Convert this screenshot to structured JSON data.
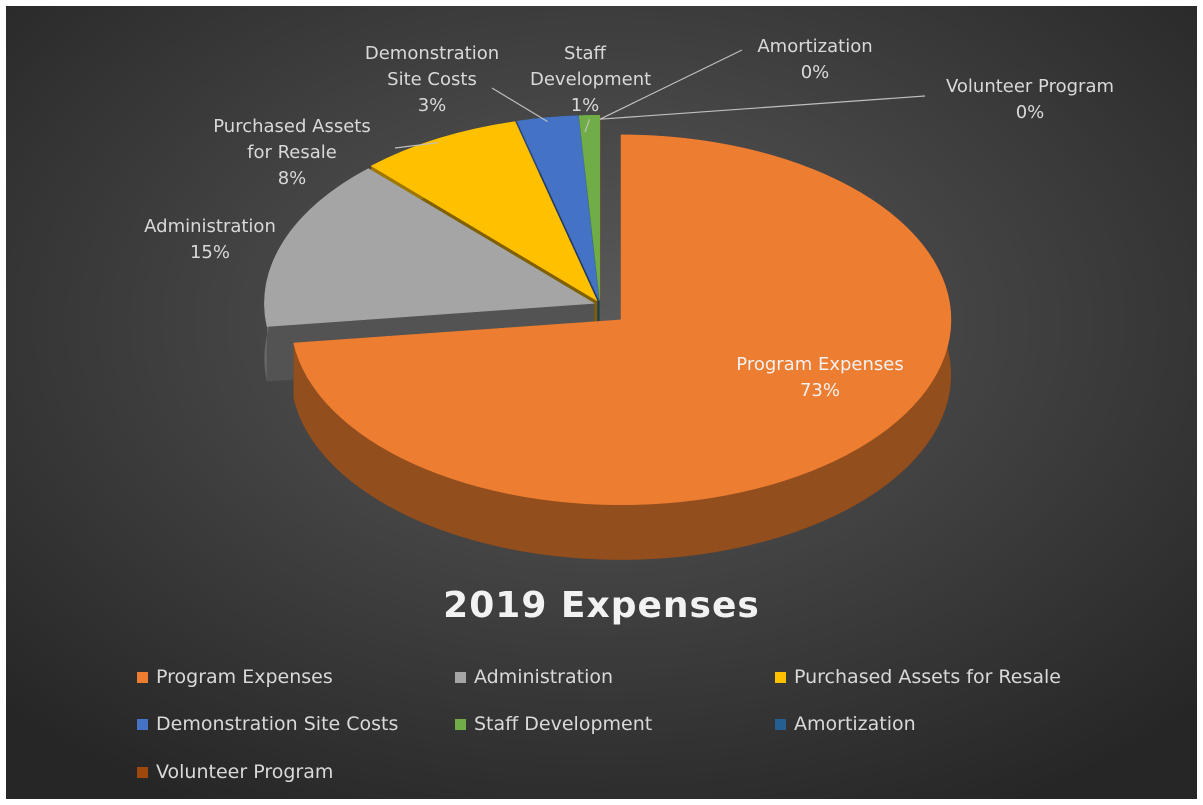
{
  "chart_data": {
    "type": "pie3d",
    "title": "2019 Expenses",
    "categories": [
      "Program Expenses",
      "Administration",
      "Purchased Assets for Resale",
      "Demonstration Site Costs",
      "Staff Development",
      "Amortization",
      "Volunteer Program"
    ],
    "values": [
      73,
      15,
      8,
      3,
      1,
      0,
      0
    ],
    "value_labels": [
      "73%",
      "15%",
      "8%",
      "3%",
      "1%",
      "0%",
      "0%"
    ],
    "colors": [
      "#ed7d31",
      "#a5a5a5",
      "#ffc000",
      "#4472c4",
      "#70ad47",
      "#255e91",
      "#9e480e"
    ],
    "legend": "bottom"
  }
}
